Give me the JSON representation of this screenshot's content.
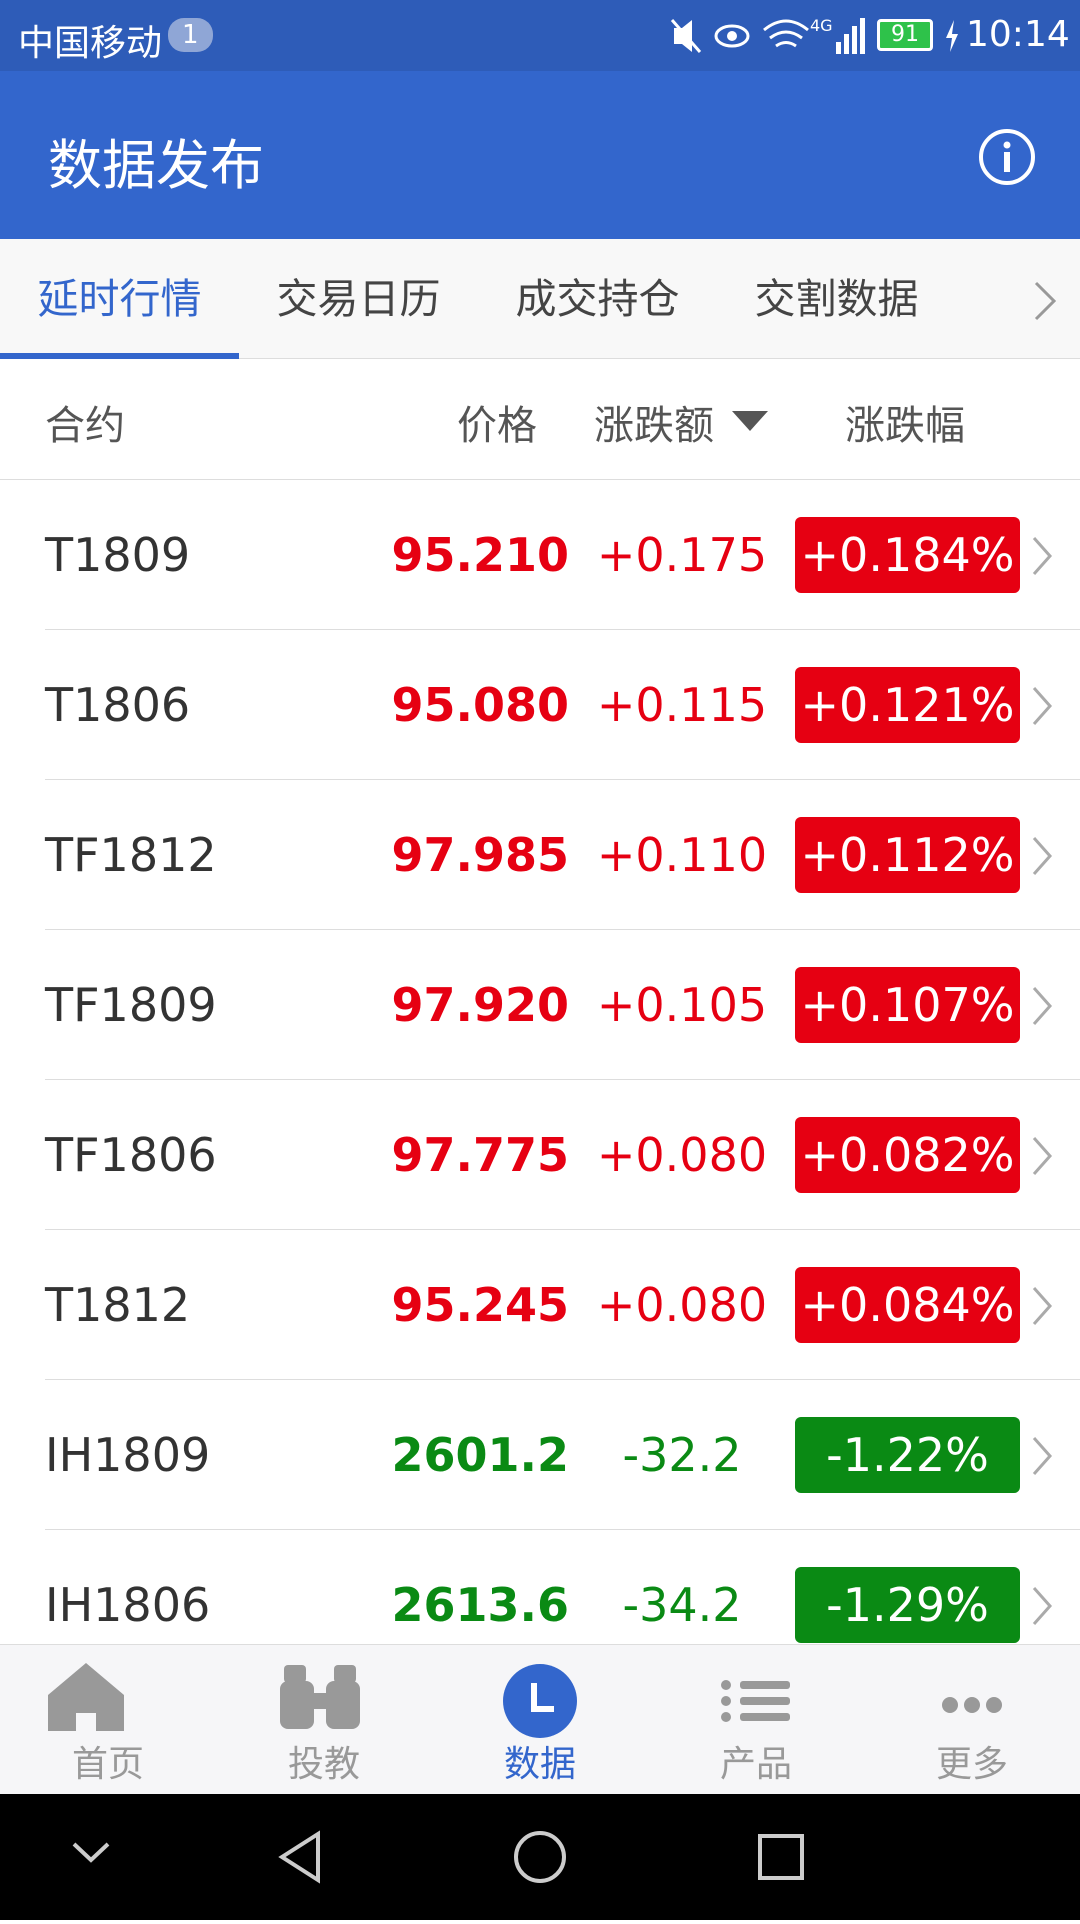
{
  "status_bar": {
    "carrier": "中国移动",
    "notification_count": "1",
    "network": "4G",
    "battery": "91",
    "time": "10:14"
  },
  "header": {
    "title": "数据发布"
  },
  "tabs": {
    "items": [
      "延时行情",
      "交易日历",
      "成交持仓",
      "交割数据"
    ],
    "active": 0
  },
  "table": {
    "columns": [
      "合约",
      "价格",
      "涨跌额",
      "涨跌幅"
    ],
    "rows": [
      {
        "contract": "T1809",
        "price": "95.210",
        "change": "+0.175",
        "pct": "+0.184%",
        "color": "#e60012"
      },
      {
        "contract": "T1806",
        "price": "95.080",
        "change": "+0.115",
        "pct": "+0.121%",
        "color": "#e60012"
      },
      {
        "contract": "TF1812",
        "price": "97.985",
        "change": "+0.110",
        "pct": "+0.112%",
        "color": "#e60012"
      },
      {
        "contract": "TF1809",
        "price": "97.920",
        "change": "+0.105",
        "pct": "+0.107%",
        "color": "#e60012"
      },
      {
        "contract": "TF1806",
        "price": "97.775",
        "change": "+0.080",
        "pct": "+0.082%",
        "color": "#e60012"
      },
      {
        "contract": "T1812",
        "price": "95.245",
        "change": "+0.080",
        "pct": "+0.084%",
        "color": "#e60012"
      },
      {
        "contract": "IH1809",
        "price": "2601.2",
        "change": "-32.2",
        "pct": "-1.22%",
        "color": "#0a8a14"
      },
      {
        "contract": "IH1806",
        "price": "2613.6",
        "change": "-34.2",
        "pct": "-1.29%",
        "color": "#0a8a14"
      }
    ]
  },
  "bottom_nav": {
    "items": [
      "首页",
      "投教",
      "数据",
      "产品",
      "更多"
    ],
    "active": 2
  }
}
